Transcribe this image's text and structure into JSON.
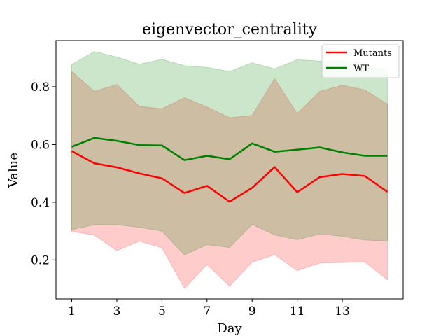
{
  "chart_data": {
    "type": "line",
    "title": "eigenvector_centrality",
    "xlabel": "Day",
    "ylabel": "Value",
    "x": [
      1,
      2,
      3,
      4,
      5,
      6,
      7,
      8,
      9,
      10,
      11,
      12,
      13,
      14,
      15
    ],
    "xticks": [
      1,
      3,
      5,
      7,
      9,
      11,
      13
    ],
    "yticks": [
      0.2,
      0.4,
      0.6,
      0.8
    ],
    "xlim": [
      0.3,
      15.7
    ],
    "ylim": [
      0.065,
      0.96
    ],
    "legend": {
      "placement": "top-right"
    },
    "series": [
      {
        "name": "Mutants",
        "color": "#ff0000",
        "band_color": "#ff0000",
        "band_opacity": 0.2,
        "values": [
          0.577,
          0.535,
          0.521,
          0.5,
          0.483,
          0.432,
          0.457,
          0.402,
          0.45,
          0.522,
          0.435,
          0.487,
          0.498,
          0.491,
          0.436
        ],
        "lower": [
          0.299,
          0.286,
          0.232,
          0.265,
          0.242,
          0.101,
          0.184,
          0.109,
          0.192,
          0.218,
          0.163,
          0.189,
          0.191,
          0.193,
          0.131
        ],
        "upper": [
          0.853,
          0.784,
          0.808,
          0.732,
          0.724,
          0.762,
          0.73,
          0.693,
          0.701,
          0.828,
          0.707,
          0.784,
          0.805,
          0.789,
          0.74
        ]
      },
      {
        "name": "WT",
        "color": "#008000",
        "band_color": "#008000",
        "band_opacity": 0.2,
        "values": [
          0.592,
          0.623,
          0.613,
          0.598,
          0.597,
          0.546,
          0.561,
          0.549,
          0.604,
          0.575,
          0.582,
          0.59,
          0.573,
          0.561,
          0.561
        ],
        "lower": [
          0.305,
          0.322,
          0.322,
          0.313,
          0.3,
          0.217,
          0.253,
          0.243,
          0.323,
          0.287,
          0.27,
          0.29,
          0.282,
          0.269,
          0.265
        ],
        "upper": [
          0.877,
          0.922,
          0.903,
          0.878,
          0.895,
          0.873,
          0.867,
          0.853,
          0.883,
          0.862,
          0.894,
          0.889,
          0.89,
          0.877,
          0.855
        ]
      }
    ]
  }
}
